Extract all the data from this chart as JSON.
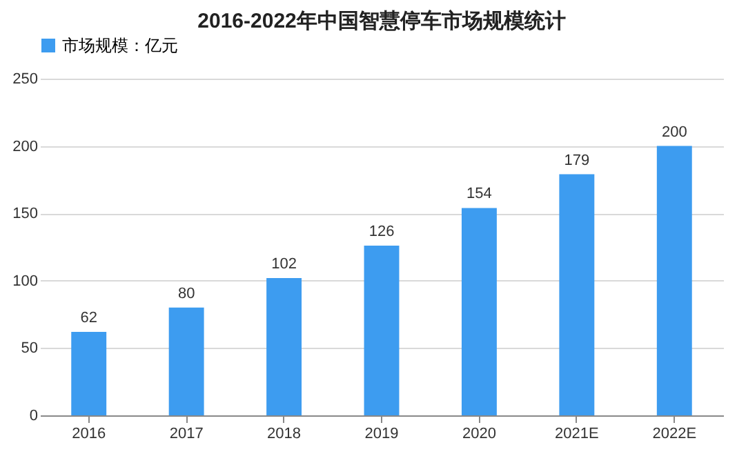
{
  "chart_data": {
    "type": "bar",
    "title": "2016-2022年中国智慧停车市场规模统计",
    "categories": [
      "2016",
      "2017",
      "2018",
      "2019",
      "2020",
      "2021E",
      "2022E"
    ],
    "series": [
      {
        "name": "市场规模：亿元",
        "color": "#3d9cf0",
        "values": [
          62,
          80,
          102,
          126,
          154,
          179,
          200
        ]
      }
    ],
    "ylim": [
      0,
      250
    ],
    "yticks": [
      0,
      50,
      100,
      150,
      200,
      250
    ],
    "grid": "y",
    "legend": "top",
    "data_labels": true
  }
}
